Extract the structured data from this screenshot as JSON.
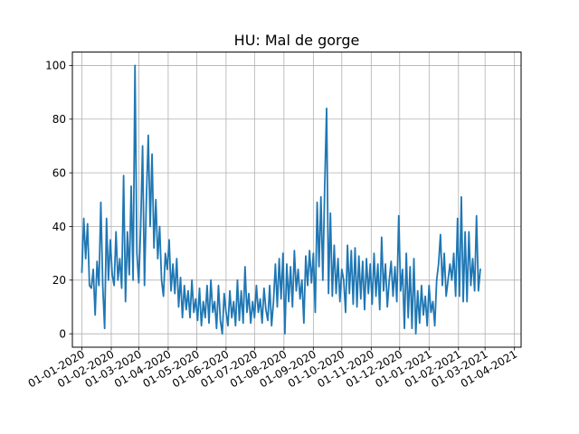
{
  "chart_data": {
    "type": "line",
    "title": "HU: Mal de gorge",
    "xlabel": "",
    "ylabel": "",
    "grid": true,
    "xlim": [
      "2019-12-22",
      "2021-04-08"
    ],
    "ylim": [
      -5,
      105
    ],
    "y_ticks": [
      0,
      20,
      40,
      60,
      80,
      100
    ],
    "x_ticks": [
      {
        "date": "2020-01-01",
        "label": "01-01-2020"
      },
      {
        "date": "2020-02-01",
        "label": "01-02-2020"
      },
      {
        "date": "2020-03-01",
        "label": "01-03-2020"
      },
      {
        "date": "2020-04-01",
        "label": "01-04-2020"
      },
      {
        "date": "2020-05-01",
        "label": "01-05-2020"
      },
      {
        "date": "2020-06-01",
        "label": "01-06-2020"
      },
      {
        "date": "2020-07-01",
        "label": "01-07-2020"
      },
      {
        "date": "2020-08-01",
        "label": "01-08-2020"
      },
      {
        "date": "2020-09-01",
        "label": "01-09-2020"
      },
      {
        "date": "2020-10-01",
        "label": "01-10-2020"
      },
      {
        "date": "2020-11-01",
        "label": "01-11-2020"
      },
      {
        "date": "2020-12-01",
        "label": "01-12-2020"
      },
      {
        "date": "2021-01-01",
        "label": "01-01-2021"
      },
      {
        "date": "2021-02-01",
        "label": "01-02-2021"
      },
      {
        "date": "2021-03-01",
        "label": "01-03-2021"
      },
      {
        "date": "2021-04-01",
        "label": "01-04-2021"
      }
    ],
    "series": [
      {
        "color": "#1f77b4",
        "points": [
          [
            "2020-01-01",
            23
          ],
          [
            "2020-01-03",
            43
          ],
          [
            "2020-01-05",
            28
          ],
          [
            "2020-01-07",
            41
          ],
          [
            "2020-01-09",
            18
          ],
          [
            "2020-01-11",
            17
          ],
          [
            "2020-01-13",
            24
          ],
          [
            "2020-01-15",
            7
          ],
          [
            "2020-01-17",
            27
          ],
          [
            "2020-01-19",
            18
          ],
          [
            "2020-01-21",
            49
          ],
          [
            "2020-01-23",
            18
          ],
          [
            "2020-01-25",
            2
          ],
          [
            "2020-01-27",
            43
          ],
          [
            "2020-01-29",
            20
          ],
          [
            "2020-01-31",
            35
          ],
          [
            "2020-02-02",
            22
          ],
          [
            "2020-02-04",
            18
          ],
          [
            "2020-02-06",
            38
          ],
          [
            "2020-02-08",
            20
          ],
          [
            "2020-02-10",
            28
          ],
          [
            "2020-02-12",
            17
          ],
          [
            "2020-02-14",
            59
          ],
          [
            "2020-02-16",
            12
          ],
          [
            "2020-02-18",
            38
          ],
          [
            "2020-02-20",
            22
          ],
          [
            "2020-02-22",
            55
          ],
          [
            "2020-02-24",
            20
          ],
          [
            "2020-02-26",
            100
          ],
          [
            "2020-02-28",
            30
          ],
          [
            "2020-03-01",
            19
          ],
          [
            "2020-03-03",
            40
          ],
          [
            "2020-03-05",
            70
          ],
          [
            "2020-03-07",
            18
          ],
          [
            "2020-03-09",
            50
          ],
          [
            "2020-03-11",
            74
          ],
          [
            "2020-03-13",
            40
          ],
          [
            "2020-03-15",
            67
          ],
          [
            "2020-03-17",
            32
          ],
          [
            "2020-03-19",
            50
          ],
          [
            "2020-03-21",
            28
          ],
          [
            "2020-03-23",
            40
          ],
          [
            "2020-03-25",
            20
          ],
          [
            "2020-03-27",
            14
          ],
          [
            "2020-03-29",
            30
          ],
          [
            "2020-03-31",
            24
          ],
          [
            "2020-04-02",
            35
          ],
          [
            "2020-04-04",
            16
          ],
          [
            "2020-04-06",
            26
          ],
          [
            "2020-04-08",
            15
          ],
          [
            "2020-04-10",
            28
          ],
          [
            "2020-04-12",
            10
          ],
          [
            "2020-04-14",
            21
          ],
          [
            "2020-04-16",
            6
          ],
          [
            "2020-04-18",
            18
          ],
          [
            "2020-04-20",
            9
          ],
          [
            "2020-04-22",
            16
          ],
          [
            "2020-04-24",
            6
          ],
          [
            "2020-04-26",
            20
          ],
          [
            "2020-04-28",
            8
          ],
          [
            "2020-04-30",
            13
          ],
          [
            "2020-05-02",
            5
          ],
          [
            "2020-05-04",
            17
          ],
          [
            "2020-05-06",
            3
          ],
          [
            "2020-05-08",
            12
          ],
          [
            "2020-05-10",
            6
          ],
          [
            "2020-05-12",
            18
          ],
          [
            "2020-05-14",
            4
          ],
          [
            "2020-05-16",
            20
          ],
          [
            "2020-05-18",
            8
          ],
          [
            "2020-05-20",
            12
          ],
          [
            "2020-05-22",
            2
          ],
          [
            "2020-05-24",
            18
          ],
          [
            "2020-05-26",
            5
          ],
          [
            "2020-05-28",
            0
          ],
          [
            "2020-05-30",
            15
          ],
          [
            "2020-06-01",
            8
          ],
          [
            "2020-06-03",
            3
          ],
          [
            "2020-06-05",
            16
          ],
          [
            "2020-06-07",
            6
          ],
          [
            "2020-06-09",
            12
          ],
          [
            "2020-06-11",
            3
          ],
          [
            "2020-06-13",
            20
          ],
          [
            "2020-06-15",
            5
          ],
          [
            "2020-06-17",
            16
          ],
          [
            "2020-06-19",
            4
          ],
          [
            "2020-06-21",
            25
          ],
          [
            "2020-06-23",
            8
          ],
          [
            "2020-06-25",
            15
          ],
          [
            "2020-06-27",
            4
          ],
          [
            "2020-06-29",
            12
          ],
          [
            "2020-07-01",
            6
          ],
          [
            "2020-07-03",
            18
          ],
          [
            "2020-07-05",
            8
          ],
          [
            "2020-07-07",
            13
          ],
          [
            "2020-07-09",
            4
          ],
          [
            "2020-07-11",
            17
          ],
          [
            "2020-07-13",
            9
          ],
          [
            "2020-07-15",
            5
          ],
          [
            "2020-07-17",
            18
          ],
          [
            "2020-07-19",
            3
          ],
          [
            "2020-07-21",
            12
          ],
          [
            "2020-07-23",
            26
          ],
          [
            "2020-07-25",
            10
          ],
          [
            "2020-07-27",
            28
          ],
          [
            "2020-07-29",
            13
          ],
          [
            "2020-07-31",
            30
          ],
          [
            "2020-08-02",
            0
          ],
          [
            "2020-08-04",
            26
          ],
          [
            "2020-08-06",
            12
          ],
          [
            "2020-08-08",
            25
          ],
          [
            "2020-08-10",
            10
          ],
          [
            "2020-08-12",
            31
          ],
          [
            "2020-08-14",
            16
          ],
          [
            "2020-08-16",
            24
          ],
          [
            "2020-08-18",
            13
          ],
          [
            "2020-08-20",
            20
          ],
          [
            "2020-08-22",
            4
          ],
          [
            "2020-08-24",
            29
          ],
          [
            "2020-08-26",
            18
          ],
          [
            "2020-08-28",
            31
          ],
          [
            "2020-08-30",
            19
          ],
          [
            "2020-09-01",
            30
          ],
          [
            "2020-09-03",
            8
          ],
          [
            "2020-09-05",
            49
          ],
          [
            "2020-09-07",
            25
          ],
          [
            "2020-09-09",
            51
          ],
          [
            "2020-09-11",
            20
          ],
          [
            "2020-09-13",
            55
          ],
          [
            "2020-09-15",
            84
          ],
          [
            "2020-09-17",
            15
          ],
          [
            "2020-09-19",
            45
          ],
          [
            "2020-09-21",
            14
          ],
          [
            "2020-09-23",
            33
          ],
          [
            "2020-09-25",
            15
          ],
          [
            "2020-09-27",
            28
          ],
          [
            "2020-09-29",
            12
          ],
          [
            "2020-10-01",
            24
          ],
          [
            "2020-10-03",
            20
          ],
          [
            "2020-10-05",
            8
          ],
          [
            "2020-10-07",
            33
          ],
          [
            "2020-10-09",
            15
          ],
          [
            "2020-10-11",
            31
          ],
          [
            "2020-10-13",
            11
          ],
          [
            "2020-10-15",
            32
          ],
          [
            "2020-10-17",
            10
          ],
          [
            "2020-10-19",
            29
          ],
          [
            "2020-10-21",
            13
          ],
          [
            "2020-10-23",
            27
          ],
          [
            "2020-10-25",
            9
          ],
          [
            "2020-10-27",
            28
          ],
          [
            "2020-10-29",
            15
          ],
          [
            "2020-10-31",
            26
          ],
          [
            "2020-11-02",
            11
          ],
          [
            "2020-11-04",
            30
          ],
          [
            "2020-11-06",
            14
          ],
          [
            "2020-11-08",
            26
          ],
          [
            "2020-11-10",
            9
          ],
          [
            "2020-11-12",
            36
          ],
          [
            "2020-11-14",
            16
          ],
          [
            "2020-11-16",
            26
          ],
          [
            "2020-11-18",
            10
          ],
          [
            "2020-11-20",
            20
          ],
          [
            "2020-11-22",
            27
          ],
          [
            "2020-11-24",
            14
          ],
          [
            "2020-11-26",
            25
          ],
          [
            "2020-11-28",
            12
          ],
          [
            "2020-11-30",
            44
          ],
          [
            "2020-12-02",
            16
          ],
          [
            "2020-12-04",
            24
          ],
          [
            "2020-12-06",
            2
          ],
          [
            "2020-12-08",
            30
          ],
          [
            "2020-12-10",
            6
          ],
          [
            "2020-12-12",
            25
          ],
          [
            "2020-12-14",
            2
          ],
          [
            "2020-12-16",
            28
          ],
          [
            "2020-12-18",
            0
          ],
          [
            "2020-12-20",
            16
          ],
          [
            "2020-12-22",
            4
          ],
          [
            "2020-12-24",
            18
          ],
          [
            "2020-12-26",
            7
          ],
          [
            "2020-12-28",
            14
          ],
          [
            "2020-12-30",
            3
          ],
          [
            "2021-01-01",
            18
          ],
          [
            "2021-01-03",
            8
          ],
          [
            "2021-01-05",
            12
          ],
          [
            "2021-01-07",
            3
          ],
          [
            "2021-01-09",
            20
          ],
          [
            "2021-01-11",
            26
          ],
          [
            "2021-01-13",
            37
          ],
          [
            "2021-01-15",
            18
          ],
          [
            "2021-01-17",
            30
          ],
          [
            "2021-01-19",
            14
          ],
          [
            "2021-01-21",
            20
          ],
          [
            "2021-01-23",
            26
          ],
          [
            "2021-01-25",
            20
          ],
          [
            "2021-01-27",
            30
          ],
          [
            "2021-01-29",
            14
          ],
          [
            "2021-01-31",
            43
          ],
          [
            "2021-02-02",
            14
          ],
          [
            "2021-02-04",
            51
          ],
          [
            "2021-02-06",
            12
          ],
          [
            "2021-02-08",
            38
          ],
          [
            "2021-02-10",
            12
          ],
          [
            "2021-02-12",
            38
          ],
          [
            "2021-02-14",
            18
          ],
          [
            "2021-02-16",
            28
          ],
          [
            "2021-02-18",
            16
          ],
          [
            "2021-02-20",
            44
          ],
          [
            "2021-02-22",
            16
          ],
          [
            "2021-02-24",
            24
          ]
        ]
      }
    ]
  }
}
